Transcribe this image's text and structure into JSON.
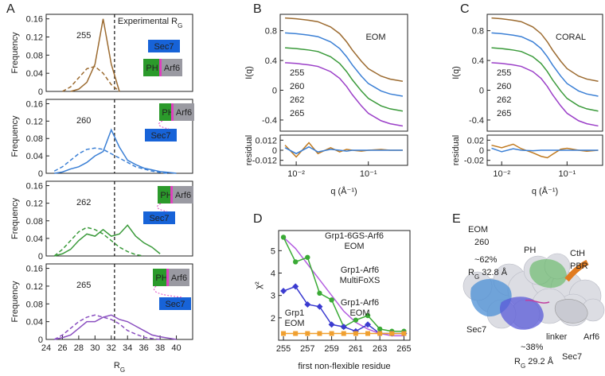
{
  "chart_data": [
    {
      "type": "line",
      "panel": "A",
      "ylabel": "Frequency",
      "x": [
        25,
        26,
        27,
        28,
        29,
        30,
        31,
        32,
        33,
        34,
        35,
        36,
        37,
        38,
        39,
        40
      ],
      "xlim": [
        24,
        42
      ],
      "ylim": [
        0,
        0.17
      ],
      "yticks": [
        0,
        0.04,
        0.08,
        0.12,
        0.16
      ],
      "reference_x": 32.4,
      "annotation": [
        "Experimental R",
        "G"
      ],
      "label": "255",
      "label_color": "#9c6b30",
      "domain_labels": [
        "Sec7",
        "PH",
        "Arf6"
      ],
      "series": [
        {
          "color": "#9c6b30",
          "dash": false,
          "values": [
            null,
            null,
            0,
            0.005,
            0.02,
            0.06,
            0.16,
            0.06,
            0,
            null,
            null,
            null,
            null,
            null,
            null,
            null
          ]
        },
        {
          "color": "#9c6b30",
          "dash": true,
          "values": [
            null,
            0,
            0.01,
            0.03,
            0.05,
            0.055,
            0.04,
            0.015,
            0,
            null,
            null,
            null,
            null,
            null,
            null,
            null
          ]
        }
      ]
    },
    {
      "type": "line",
      "ylabel": "Frequency",
      "x": [
        25,
        26,
        27,
        28,
        29,
        30,
        31,
        32,
        33,
        34,
        35,
        36,
        37,
        38,
        39,
        40
      ],
      "xlim": [
        24,
        42
      ],
      "ylim": [
        0,
        0.17
      ],
      "yticks": [
        0,
        0.04,
        0.08,
        0.12,
        0.16
      ],
      "reference_x": 32.4,
      "label": "260",
      "label_color": "#3a7fd5",
      "domain_labels": [
        "Sec7",
        "PH",
        "Arf6"
      ],
      "series": [
        {
          "color": "#3a7fd5",
          "dash": false,
          "values": [
            0,
            0.003,
            0.01,
            0.015,
            0.025,
            0.04,
            0.05,
            0.1,
            0.06,
            0.03,
            0.02,
            0.012,
            0.008,
            0.004,
            0.002,
            0
          ]
        },
        {
          "color": "#3a7fd5",
          "dash": true,
          "values": [
            0.005,
            0.015,
            0.03,
            0.045,
            0.055,
            0.058,
            0.055,
            0.045,
            0.035,
            0.025,
            0.015,
            0.01,
            0.005,
            0.002,
            0,
            null
          ]
        }
      ]
    },
    {
      "type": "line",
      "ylabel": "Frequency",
      "x": [
        25,
        26,
        27,
        28,
        29,
        30,
        31,
        32,
        33,
        34,
        35,
        36,
        37,
        38,
        39,
        40
      ],
      "xlim": [
        24,
        42
      ],
      "ylim": [
        0,
        0.17
      ],
      "yticks": [
        0,
        0.04,
        0.08,
        0.12,
        0.16
      ],
      "reference_x": 32.4,
      "label": "262",
      "label_color": "#3a9a3a",
      "domain_labels": [
        "Sec7",
        "PH",
        "Arf6"
      ],
      "series": [
        {
          "color": "#3a9a3a",
          "dash": false,
          "values": [
            0,
            0.005,
            0.015,
            0.035,
            0.05,
            0.045,
            0.06,
            0.045,
            0.05,
            0.07,
            0.045,
            0.03,
            0.02,
            0.005,
            null,
            null
          ]
        },
        {
          "color": "#3a9a3a",
          "dash": true,
          "values": [
            0,
            0.015,
            0.035,
            0.055,
            0.065,
            0.06,
            0.05,
            0.035,
            0.02,
            0.01,
            0.003,
            0,
            null,
            null,
            null,
            null
          ]
        }
      ]
    },
    {
      "type": "line",
      "ylabel": "Frequency",
      "xlabel": [
        "R",
        "G"
      ],
      "x": [
        25,
        26,
        27,
        28,
        29,
        30,
        31,
        32,
        33,
        34,
        35,
        36,
        37,
        38,
        39,
        40
      ],
      "xlim": [
        24,
        42
      ],
      "xticks": [
        24,
        26,
        28,
        30,
        32,
        34,
        36,
        38,
        40
      ],
      "ylim": [
        0,
        0.17
      ],
      "yticks": [
        0,
        0.04,
        0.08,
        0.12,
        0.16
      ],
      "reference_x": 32.4,
      "label": "265",
      "label_color": "#8a4fc0",
      "domain_labels": [
        "Sec7",
        "PH",
        "Arf6"
      ],
      "series": [
        {
          "color": "#8a4fc0",
          "dash": false,
          "values": [
            0,
            0.004,
            0.01,
            0.025,
            0.04,
            0.04,
            0.05,
            0.055,
            0.045,
            0.04,
            0.03,
            0.02,
            0.01,
            0.006,
            0.003,
            0
          ]
        },
        {
          "color": "#8a4fc0",
          "dash": true,
          "values": [
            0,
            0.01,
            0.025,
            0.04,
            0.05,
            0.055,
            0.05,
            0.045,
            0.035,
            0.02,
            0.012,
            0.005,
            0.002,
            0,
            null,
            null
          ]
        }
      ]
    },
    {
      "type": "line",
      "panel": "B",
      "ylabel": "I(q)",
      "annotation": "EOM",
      "log_x": true,
      "x": [
        0.007,
        0.01,
        0.015,
        0.02,
        0.03,
        0.04,
        0.05,
        0.06,
        0.08,
        0.1,
        0.15,
        0.2,
        0.3
      ],
      "xlim": [
        0.006,
        0.35
      ],
      "ylim": [
        -0.55,
        1.02
      ],
      "yticks": [
        -0.4,
        0,
        0.4,
        0.8
      ],
      "series": [
        {
          "name": "255",
          "color": "#9c6b30",
          "values": [
            0.97,
            0.96,
            0.94,
            0.92,
            0.85,
            0.76,
            0.65,
            0.54,
            0.39,
            0.29,
            0.19,
            0.15,
            0.12
          ]
        },
        {
          "name": "260",
          "color": "#3a7fd5",
          "values": [
            0.77,
            0.76,
            0.74,
            0.72,
            0.65,
            0.56,
            0.45,
            0.34,
            0.19,
            0.09,
            -0.01,
            -0.05,
            -0.08
          ]
        },
        {
          "name": "262",
          "color": "#3a9a3a",
          "values": [
            0.57,
            0.56,
            0.54,
            0.52,
            0.45,
            0.36,
            0.25,
            0.14,
            -0.01,
            -0.11,
            -0.21,
            -0.25,
            -0.28
          ]
        },
        {
          "name": "265",
          "color": "#9b3fc8",
          "values": [
            0.37,
            0.36,
            0.34,
            0.32,
            0.25,
            0.16,
            0.05,
            -0.06,
            -0.21,
            -0.31,
            -0.41,
            -0.45,
            -0.48
          ]
        }
      ]
    },
    {
      "type": "line",
      "ylabel": "residual",
      "xlabel": "q (Å⁻¹)",
      "log_x": true,
      "x": [
        0.007,
        0.01,
        0.015,
        0.02,
        0.03,
        0.04,
        0.05,
        0.06,
        0.08,
        0.1,
        0.15,
        0.2,
        0.3
      ],
      "xlim": [
        0.006,
        0.35
      ],
      "xticks": [
        {
          "value": 0.01,
          "label": "10⁻²"
        },
        {
          "value": 0.1,
          "label": "10⁻¹"
        }
      ],
      "ylim": [
        -0.018,
        0.018
      ],
      "yticks": [
        0.012,
        0,
        -0.012
      ],
      "series": [
        {
          "color": "#c07a20",
          "values": [
            0.006,
            -0.008,
            0.009,
            -0.004,
            0.003,
            -0.002,
            0.001,
            0,
            -0.001,
            0,
            0.001,
            0,
            0
          ]
        },
        {
          "color": "#3a7fd5",
          "values": [
            0.003,
            -0.004,
            0.004,
            -0.002,
            0.001,
            0,
            -0.001,
            0,
            0,
            0,
            0,
            0,
            0
          ]
        }
      ]
    },
    {
      "type": "line",
      "panel": "C",
      "ylabel": "I(q)",
      "annotation": "CORAL",
      "log_x": true,
      "x": [
        0.007,
        0.01,
        0.015,
        0.02,
        0.03,
        0.04,
        0.05,
        0.06,
        0.08,
        0.1,
        0.15,
        0.2,
        0.3
      ],
      "xlim": [
        0.006,
        0.35
      ],
      "ylim": [
        -0.55,
        1.02
      ],
      "yticks": [
        -0.4,
        0,
        0.4,
        0.8
      ],
      "series": [
        {
          "name": "255",
          "color": "#9c6b30",
          "values": [
            0.97,
            0.96,
            0.94,
            0.92,
            0.85,
            0.76,
            0.65,
            0.54,
            0.39,
            0.29,
            0.19,
            0.15,
            0.12
          ]
        },
        {
          "name": "260",
          "color": "#3a7fd5",
          "values": [
            0.77,
            0.76,
            0.74,
            0.72,
            0.65,
            0.56,
            0.45,
            0.34,
            0.19,
            0.09,
            -0.01,
            -0.05,
            -0.08
          ]
        },
        {
          "name": "262",
          "color": "#3a9a3a",
          "values": [
            0.57,
            0.56,
            0.54,
            0.52,
            0.45,
            0.36,
            0.25,
            0.14,
            -0.01,
            -0.11,
            -0.21,
            -0.25,
            -0.28
          ]
        },
        {
          "name": "265",
          "color": "#9b3fc8",
          "values": [
            0.37,
            0.36,
            0.34,
            0.32,
            0.25,
            0.16,
            0.05,
            -0.06,
            -0.21,
            -0.31,
            -0.41,
            -0.45,
            -0.48
          ]
        }
      ]
    },
    {
      "type": "line",
      "ylabel": "residual",
      "xlabel": "q (Å⁻¹)",
      "log_x": true,
      "x": [
        0.007,
        0.01,
        0.015,
        0.02,
        0.03,
        0.04,
        0.05,
        0.06,
        0.08,
        0.1,
        0.15,
        0.2,
        0.3
      ],
      "xlim": [
        0.006,
        0.35
      ],
      "xticks": [
        {
          "value": 0.01,
          "label": "10⁻²"
        },
        {
          "value": 0.1,
          "label": "10⁻¹"
        }
      ],
      "ylim": [
        -0.03,
        0.03
      ],
      "yticks": [
        0.02,
        0,
        -0.02
      ],
      "series": [
        {
          "color": "#c07a20",
          "values": [
            0.01,
            0.005,
            0.012,
            0.003,
            -0.005,
            -0.012,
            -0.015,
            -0.008,
            0.002,
            0.004,
            0,
            -0.002,
            0
          ]
        },
        {
          "color": "#3a7fd5",
          "values": [
            0.004,
            -0.003,
            0.003,
            0,
            -0.001,
            0,
            0,
            0,
            0,
            0,
            0,
            0,
            0
          ]
        }
      ]
    },
    {
      "type": "line",
      "panel": "D",
      "ylabel": "χ²",
      "xlabel": "first non-flexible residue",
      "x": [
        255,
        256,
        257,
        258,
        259,
        260,
        261,
        262,
        263,
        264,
        265
      ],
      "xlim": [
        254.6,
        265.5
      ],
      "xticks": [
        255,
        257,
        259,
        261,
        263,
        265
      ],
      "ylim": [
        1,
        5.9
      ],
      "yticks": [
        2,
        3,
        4,
        5
      ],
      "series": [
        {
          "name": [
            "Grp1-6GS-Arf6",
            "EOM"
          ],
          "color": "#b45ee0",
          "marker": "none",
          "values": [
            5.6,
            5.1,
            4.4,
            3.7,
            3.0,
            2.3,
            1.8,
            1.5,
            1.3,
            1.2,
            1.2
          ]
        },
        {
          "name": [
            "Grp1-Arf6",
            "MultiFoXS"
          ],
          "color": "#3aaa35",
          "marker": "circle",
          "values": [
            5.6,
            4.5,
            4.7,
            3.1,
            2.8,
            1.6,
            1.9,
            2.1,
            1.5,
            1.4,
            1.4
          ]
        },
        {
          "name": [
            "Grp1-Arf6",
            "EOM"
          ],
          "color": "#3b3bd0",
          "marker": "diamond",
          "values": [
            3.2,
            3.4,
            2.6,
            2.5,
            1.7,
            1.6,
            1.4,
            1.7,
            1.3,
            1.3,
            1.3
          ]
        },
        {
          "name": [
            "Grp1",
            "EOM"
          ],
          "color": "#f0a030",
          "marker": "square",
          "values": [
            1.3,
            1.3,
            1.3,
            1.3,
            1.3,
            1.3,
            1.3,
            1.3,
            1.3,
            1.3,
            1.3
          ]
        }
      ]
    }
  ],
  "figure_E": {
    "panel": "E",
    "labels": [
      "EOM",
      "260",
      "~62%",
      [
        "R",
        "G",
        " 32.8 Å"
      ],
      "PH",
      "CtH",
      "PBR",
      "Sec7",
      "linker",
      "Arf6",
      "~38%",
      [
        "R",
        "G",
        " 29.2 Å"
      ],
      "Sec7"
    ]
  }
}
